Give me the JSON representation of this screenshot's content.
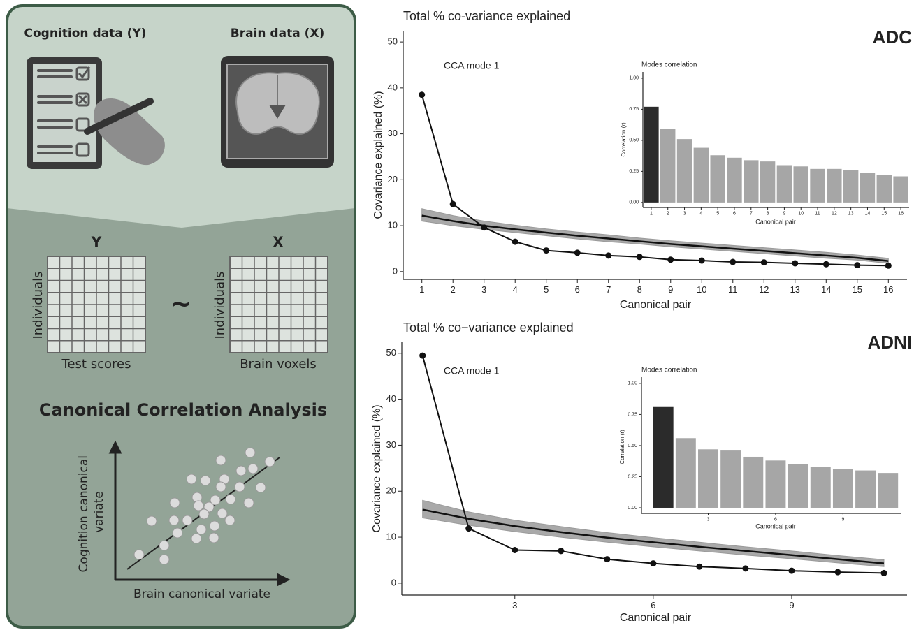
{
  "diagram": {
    "cognition_label": "Cognition data (Y)",
    "brain_label": "Brain data (X)",
    "y_matrix": {
      "title": "Y",
      "row_label": "Individuals",
      "col_label": "Test scores"
    },
    "x_matrix": {
      "title": "X",
      "row_label": "Individuals",
      "col_label": "Brain voxels"
    },
    "relation": "~",
    "method": "Canonical Correlation Analysis",
    "y_axis_label": [
      "Cognition canonical",
      "variate"
    ],
    "x_axis_label": "Brain canonical variate"
  },
  "chart_data": [
    {
      "type": "line",
      "title": "Total % co-variance explained",
      "annotation": "ADC",
      "label": "CCA mode 1",
      "x_label": "Canonical pair",
      "y_label": "Covariance explained (%)",
      "x": [
        1,
        2,
        3,
        4,
        5,
        6,
        7,
        8,
        9,
        10,
        11,
        12,
        13,
        14,
        15,
        16
      ],
      "series": [
        {
          "color": "#111111",
          "markers": true,
          "values": [
            38.5,
            14.7,
            9.6,
            6.5,
            4.6,
            4.1,
            3.5,
            3.2,
            2.6,
            2.4,
            2.1,
            2.0,
            1.8,
            1.6,
            1.4,
            1.3
          ]
        },
        {
          "color": "#111111",
          "markers": false,
          "values": [
            12.2,
            11.0,
            10.0,
            9.2,
            8.5,
            7.8,
            7.2,
            6.6,
            6.0,
            5.5,
            5.0,
            4.5,
            4.0,
            3.5,
            3.0,
            2.3
          ]
        }
      ],
      "band": {
        "color": "#9a9a9a",
        "upper": [
          13.7,
          12.2,
          11.0,
          10.1,
          9.3,
          8.6,
          8.0,
          7.3,
          6.7,
          6.2,
          5.7,
          5.2,
          4.7,
          4.2,
          3.6,
          2.9
        ],
        "lower": [
          11.0,
          10.0,
          9.2,
          8.5,
          7.8,
          7.1,
          6.5,
          6.0,
          5.4,
          4.9,
          4.4,
          3.9,
          3.4,
          2.9,
          2.5,
          1.8
        ]
      },
      "xlim": [
        0.4,
        16.6
      ],
      "ylim": [
        -1.7,
        52.3
      ],
      "xticks": [
        1,
        2,
        3,
        4,
        5,
        6,
        7,
        8,
        9,
        10,
        11,
        12,
        13,
        14,
        15,
        16
      ],
      "yticks": [
        0,
        10,
        20,
        30,
        40,
        50
      ]
    },
    {
      "type": "bar",
      "title": "Modes correlation",
      "x_label": "Canonical pair",
      "y_label": "Correlation (r)",
      "x": [
        1,
        2,
        3,
        4,
        5,
        6,
        7,
        8,
        9,
        10,
        11,
        12,
        13,
        14,
        15,
        16
      ],
      "values": [
        0.77,
        0.59,
        0.51,
        0.44,
        0.38,
        0.36,
        0.34,
        0.33,
        0.3,
        0.29,
        0.27,
        0.27,
        0.26,
        0.24,
        0.22,
        0.21
      ],
      "colors": [
        "#2b2b2b",
        "#a6a6a6",
        "#a6a6a6",
        "#a6a6a6",
        "#a6a6a6",
        "#a6a6a6",
        "#a6a6a6",
        "#a6a6a6",
        "#a6a6a6",
        "#a6a6a6",
        "#a6a6a6",
        "#a6a6a6",
        "#a6a6a6",
        "#a6a6a6",
        "#a6a6a6",
        "#a6a6a6"
      ],
      "xlim": [
        0.5,
        16.5
      ],
      "ylim": [
        -0.04,
        1.05
      ],
      "xticks": [
        1,
        2,
        3,
        4,
        5,
        6,
        7,
        8,
        9,
        10,
        11,
        12,
        13,
        14,
        15,
        16
      ],
      "yticks": [
        {
          "value": 0,
          "label": "0.00"
        },
        0.25,
        {
          "value": 0.5,
          "label": "0.50"
        },
        0.75,
        {
          "value": 1,
          "label": "1.00"
        }
      ]
    },
    {
      "type": "line",
      "title": "Total % co−variance explained",
      "annotation": "ADNI",
      "label": "CCA mode 1",
      "x_label": "Canonical pair",
      "y_label": "Covariance explained (%)",
      "x": [
        1,
        2,
        3,
        4,
        5,
        6,
        7,
        8,
        9,
        10,
        11
      ],
      "series": [
        {
          "color": "#111111",
          "markers": true,
          "values": [
            49.5,
            11.9,
            7.2,
            7.0,
            5.2,
            4.3,
            3.6,
            3.2,
            2.7,
            2.4,
            2.2
          ]
        },
        {
          "color": "#111111",
          "markers": false,
          "values": [
            16.0,
            14.0,
            12.4,
            11.1,
            9.9,
            8.9,
            7.9,
            7.0,
            6.1,
            5.2,
            4.3
          ]
        }
      ],
      "band": {
        "color": "#9a9a9a",
        "upper": [
          18.0,
          15.5,
          13.7,
          12.3,
          11.0,
          9.9,
          8.9,
          7.9,
          7.0,
          6.0,
          5.1
        ],
        "lower": [
          14.2,
          12.6,
          11.2,
          10.0,
          8.9,
          7.9,
          7.0,
          6.1,
          5.3,
          4.4,
          3.6
        ]
      },
      "xlim": [
        0.55,
        11.5
      ],
      "ylim": [
        -2.6,
        52.4
      ],
      "xticks": [
        3,
        6,
        9
      ],
      "yticks": [
        0,
        10,
        20,
        30,
        40,
        50
      ]
    },
    {
      "type": "bar",
      "title": "Modes correlation",
      "x_label": "Canonical pair",
      "y_label": "Correlation (r)",
      "x": [
        1,
        2,
        3,
        4,
        5,
        6,
        7,
        8,
        9,
        10,
        11
      ],
      "values": [
        0.81,
        0.56,
        0.47,
        0.46,
        0.41,
        0.38,
        0.35,
        0.33,
        0.31,
        0.3,
        0.28
      ],
      "colors": [
        "#2b2b2b",
        "#a6a6a6",
        "#a6a6a6",
        "#a6a6a6",
        "#a6a6a6",
        "#a6a6a6",
        "#a6a6a6",
        "#a6a6a6",
        "#a6a6a6",
        "#a6a6a6",
        "#a6a6a6"
      ],
      "xlim": [
        0.03,
        11.6
      ],
      "ylim": [
        -0.045,
        1.05
      ],
      "xticks": [
        3,
        6,
        9
      ],
      "yticks": [
        {
          "value": 0,
          "label": "0.00"
        },
        0.25,
        {
          "value": 0.5,
          "label": "0.50"
        },
        0.75,
        {
          "value": 1,
          "label": "1.00"
        }
      ]
    }
  ]
}
